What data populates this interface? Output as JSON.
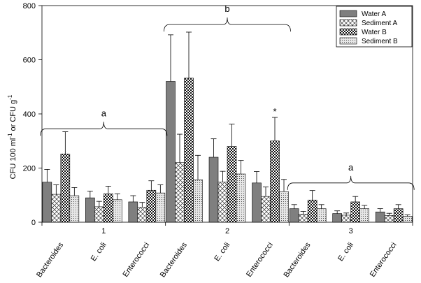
{
  "chart_data": {
    "type": "bar",
    "ylabel": {
      "base": "CFU 100 ml",
      "sup1": "-1",
      "mid": " or CFU g",
      "sup2": "-1"
    },
    "ylim": [
      0,
      800
    ],
    "yticks": [
      0,
      200,
      400,
      600,
      800
    ],
    "grid": false,
    "legend_position": "top-right",
    "group_labels": [
      "1",
      "2",
      "3"
    ],
    "categories": [
      "Bacteroides",
      "E. coli",
      "Enterococci"
    ],
    "series": [
      {
        "name": "Water A",
        "pattern": "solid-gray",
        "values": [
          [
            148,
            90,
            75
          ],
          [
            520,
            240,
            145
          ],
          [
            50,
            32,
            38
          ]
        ],
        "errors": [
          [
            47,
            25,
            23
          ],
          [
            172,
            68,
            42
          ],
          [
            15,
            10,
            12
          ]
        ]
      },
      {
        "name": "Sediment A",
        "pattern": "crosshatch",
        "values": [
          [
            103,
            57,
            55
          ],
          [
            220,
            148,
            95
          ],
          [
            30,
            26,
            25
          ]
        ],
        "errors": [
          [
            35,
            20,
            18
          ],
          [
            105,
            40,
            35
          ],
          [
            10,
            8,
            8
          ]
        ]
      },
      {
        "name": "Water B",
        "pattern": "checker",
        "values": [
          [
            252,
            105,
            118
          ],
          [
            532,
            280,
            300
          ],
          [
            82,
            75,
            50
          ]
        ],
        "errors": [
          [
            82,
            28,
            35
          ],
          [
            170,
            82,
            87
          ],
          [
            35,
            20,
            15
          ]
        ]
      },
      {
        "name": "Sediment B",
        "pattern": "dotted",
        "values": [
          [
            98,
            83,
            108
          ],
          [
            157,
            178,
            113
          ],
          [
            50,
            50,
            22
          ]
        ],
        "errors": [
          [
            30,
            22,
            30
          ],
          [
            90,
            50,
            45
          ],
          [
            15,
            12,
            5
          ]
        ]
      }
    ],
    "annotations": [
      {
        "text": "a",
        "group": 0
      },
      {
        "text": "b",
        "group": 1
      },
      {
        "text": "a",
        "group": 2
      },
      {
        "text": "*",
        "group": 1,
        "category": 2,
        "series": 2
      }
    ]
  }
}
